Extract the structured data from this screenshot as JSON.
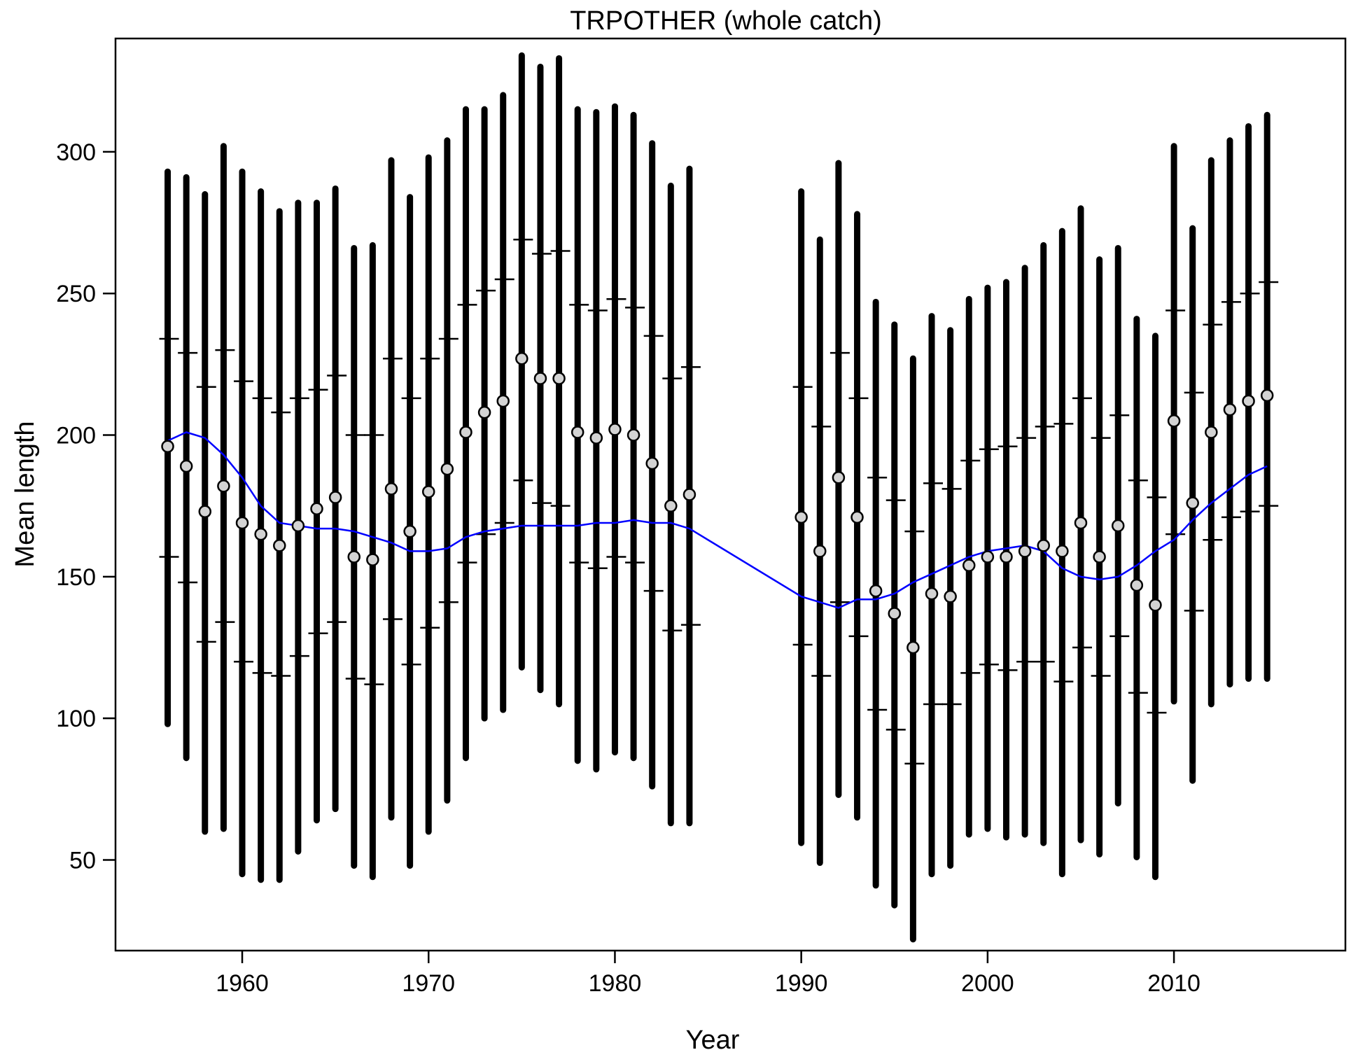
{
  "chart_data": {
    "type": "scatter",
    "title": "TRPOTHER (whole catch)",
    "xlabel": "Year",
    "ylabel": "Mean length",
    "xlim": [
      1953.2,
      2019.2
    ],
    "ylim": [
      18,
      340
    ],
    "xticks": [
      1960,
      1970,
      1980,
      1990,
      2000,
      2010
    ],
    "yticks": [
      50,
      100,
      150,
      200,
      250,
      300
    ],
    "grid": false,
    "legend": "none",
    "colors": {
      "bars": "#000000",
      "points_fill": "#d3d3d3",
      "points_stroke": "#000000",
      "smoother": "#0000ff"
    },
    "series": [
      {
        "x": [
          1956,
          1957,
          1958,
          1959,
          1960,
          1961,
          1962,
          1963,
          1964,
          1965,
          1966,
          1967,
          1968,
          1969,
          1970,
          1971,
          1972,
          1973,
          1974,
          1975,
          1976,
          1977,
          1978,
          1979,
          1980,
          1981,
          1982,
          1983,
          1984,
          1990,
          1991,
          1992,
          1993,
          1994,
          1995,
          1996,
          1997,
          1998,
          1999,
          2000,
          2001,
          2002,
          2003,
          2004,
          2005,
          2006,
          2007,
          2008,
          2009,
          2010,
          2011,
          2012,
          2013,
          2014,
          2015
        ],
        "mean": [
          196,
          189,
          173,
          182,
          169,
          165,
          161,
          168,
          174,
          178,
          157,
          156,
          181,
          166,
          180,
          188,
          201,
          208,
          212,
          227,
          220,
          220,
          201,
          199,
          202,
          200,
          190,
          175,
          179,
          171,
          159,
          185,
          171,
          145,
          137,
          125,
          144,
          143,
          154,
          157,
          157,
          159,
          161,
          159,
          169,
          157,
          168,
          147,
          140,
          205,
          176,
          201,
          209,
          212,
          214
        ],
        "lower": [
          98,
          86,
          60,
          61,
          45,
          43,
          43,
          53,
          64,
          68,
          48,
          44,
          65,
          48,
          60,
          71,
          86,
          100,
          103,
          118,
          110,
          105,
          85,
          82,
          88,
          86,
          76,
          63,
          63,
          56,
          49,
          73,
          65,
          41,
          34,
          22,
          45,
          48,
          59,
          61,
          58,
          59,
          56,
          45,
          57,
          52,
          70,
          51,
          44,
          106,
          78,
          105,
          112,
          114,
          114
        ],
        "upper": [
          293,
          291,
          285,
          302,
          293,
          286,
          279,
          282,
          282,
          287,
          266,
          267,
          297,
          284,
          298,
          304,
          315,
          315,
          320,
          334,
          330,
          333,
          315,
          314,
          316,
          313,
          303,
          288,
          294,
          286,
          269,
          296,
          278,
          247,
          239,
          227,
          242,
          237,
          248,
          252,
          254,
          259,
          267,
          272,
          280,
          262,
          266,
          241,
          235,
          302,
          273,
          297,
          304,
          309,
          313
        ]
      },
      {
        "x": [
          1956,
          1957,
          1958,
          1959,
          1960,
          1961,
          1962,
          1963,
          1964,
          1965,
          1966,
          1967,
          1968,
          1969,
          1970,
          1971,
          1972,
          1973,
          1974,
          1975,
          1976,
          1977,
          1978,
          1979,
          1980,
          1981,
          1982,
          1983,
          1984,
          1990,
          1991,
          1992,
          1993,
          1994,
          1995,
          1996,
          1997,
          1998,
          1999,
          2000,
          2001,
          2002,
          2003,
          2004,
          2005,
          2006,
          2007,
          2008,
          2009,
          2010,
          2011,
          2012,
          2013,
          2014,
          2015
        ],
        "inner_lower": [
          157,
          148,
          127,
          134,
          120,
          116,
          115,
          122,
          130,
          134,
          114,
          112,
          135,
          119,
          132,
          141,
          155,
          165,
          169,
          184,
          176,
          175,
          155,
          153,
          157,
          155,
          145,
          131,
          133,
          126,
          115,
          141,
          129,
          103,
          96,
          84,
          105,
          105,
          116,
          119,
          117,
          120,
          120,
          113,
          125,
          115,
          129,
          109,
          102,
          165,
          138,
          163,
          171,
          173,
          175
        ],
        "inner_upper": [
          234,
          229,
          217,
          230,
          219,
          213,
          208,
          213,
          216,
          221,
          200,
          200,
          227,
          213,
          227,
          234,
          246,
          251,
          255,
          269,
          264,
          265,
          246,
          244,
          248,
          245,
          235,
          220,
          224,
          217,
          203,
          229,
          213,
          185,
          177,
          166,
          183,
          181,
          191,
          195,
          196,
          199,
          203,
          204,
          213,
          199,
          207,
          184,
          178,
          244,
          215,
          239,
          247,
          250,
          254
        ]
      },
      {
        "x": [
          1956,
          1957,
          1958,
          1959,
          1960,
          1961,
          1962,
          1963,
          1964,
          1965,
          1966,
          1967,
          1968,
          1969,
          1970,
          1971,
          1972,
          1973,
          1974,
          1975,
          1976,
          1977,
          1978,
          1979,
          1980,
          1981,
          1982,
          1983,
          1984,
          1990,
          1991,
          1992,
          1993,
          1994,
          1995,
          1996,
          1997,
          1998,
          1999,
          2000,
          2001,
          2002,
          2003,
          2004,
          2005,
          2006,
          2007,
          2008,
          2009,
          2010,
          2011,
          2012,
          2013,
          2014,
          2015
        ],
        "y": [
          198,
          201,
          199,
          193,
          185,
          175,
          169,
          168,
          167,
          167,
          166,
          164,
          162,
          159,
          159,
          160,
          164,
          166,
          167,
          168,
          168,
          168,
          168,
          169,
          169,
          170,
          169,
          169,
          167,
          143,
          141,
          139,
          142,
          142,
          144,
          148,
          151,
          154,
          157,
          159,
          160,
          161,
          159,
          153,
          150,
          149,
          150,
          154,
          159,
          163,
          170,
          176,
          181,
          186,
          189
        ]
      }
    ]
  }
}
